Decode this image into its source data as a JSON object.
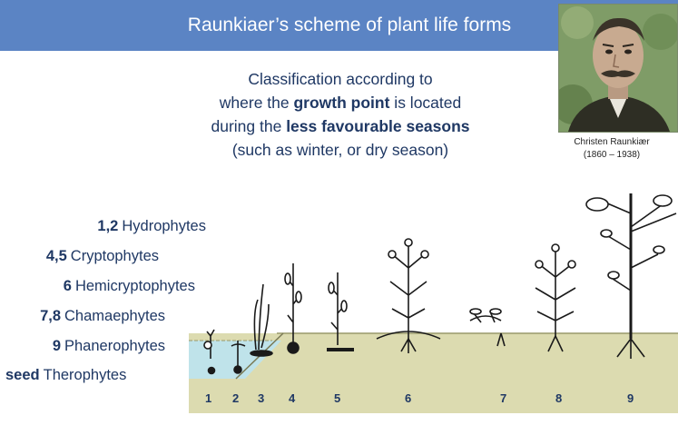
{
  "header": {
    "title": "Raunkiaer’s scheme of plant life forms"
  },
  "portrait": {
    "caption_name": "Christen Raunkiær",
    "caption_years": "(1860 – 1938)"
  },
  "intro": {
    "line1": "Classification according to",
    "line2_pre": "where the ",
    "line2_bold": "growth point",
    "line2_post": " is located",
    "line3_pre": "during the ",
    "line3_bold": "less favourable seasons",
    "line4": "(such as winter, or dry season)"
  },
  "legend": [
    {
      "key": "1,2",
      "name": "Hydrophytes"
    },
    {
      "key": "4,5",
      "name": "Cryptophytes"
    },
    {
      "key": "6",
      "name": "Hemicryptophytes"
    },
    {
      "key": "7,8",
      "name": "Chamaephytes"
    },
    {
      "key": "9",
      "name": "Phanerophytes"
    },
    {
      "key": "seed",
      "name": "Therophytes"
    }
  ],
  "diagram": {
    "plant_numbers": [
      "1",
      "2",
      "3",
      "4",
      "5",
      "6",
      "7",
      "8",
      "9"
    ],
    "colors": {
      "water": "#bfe3ea",
      "soil": "#dcdbb0",
      "soil_line": "#9a9a6a",
      "ink": "#1a1a1a",
      "title_bar": "#5b84c4",
      "text": "#1f3864"
    }
  }
}
